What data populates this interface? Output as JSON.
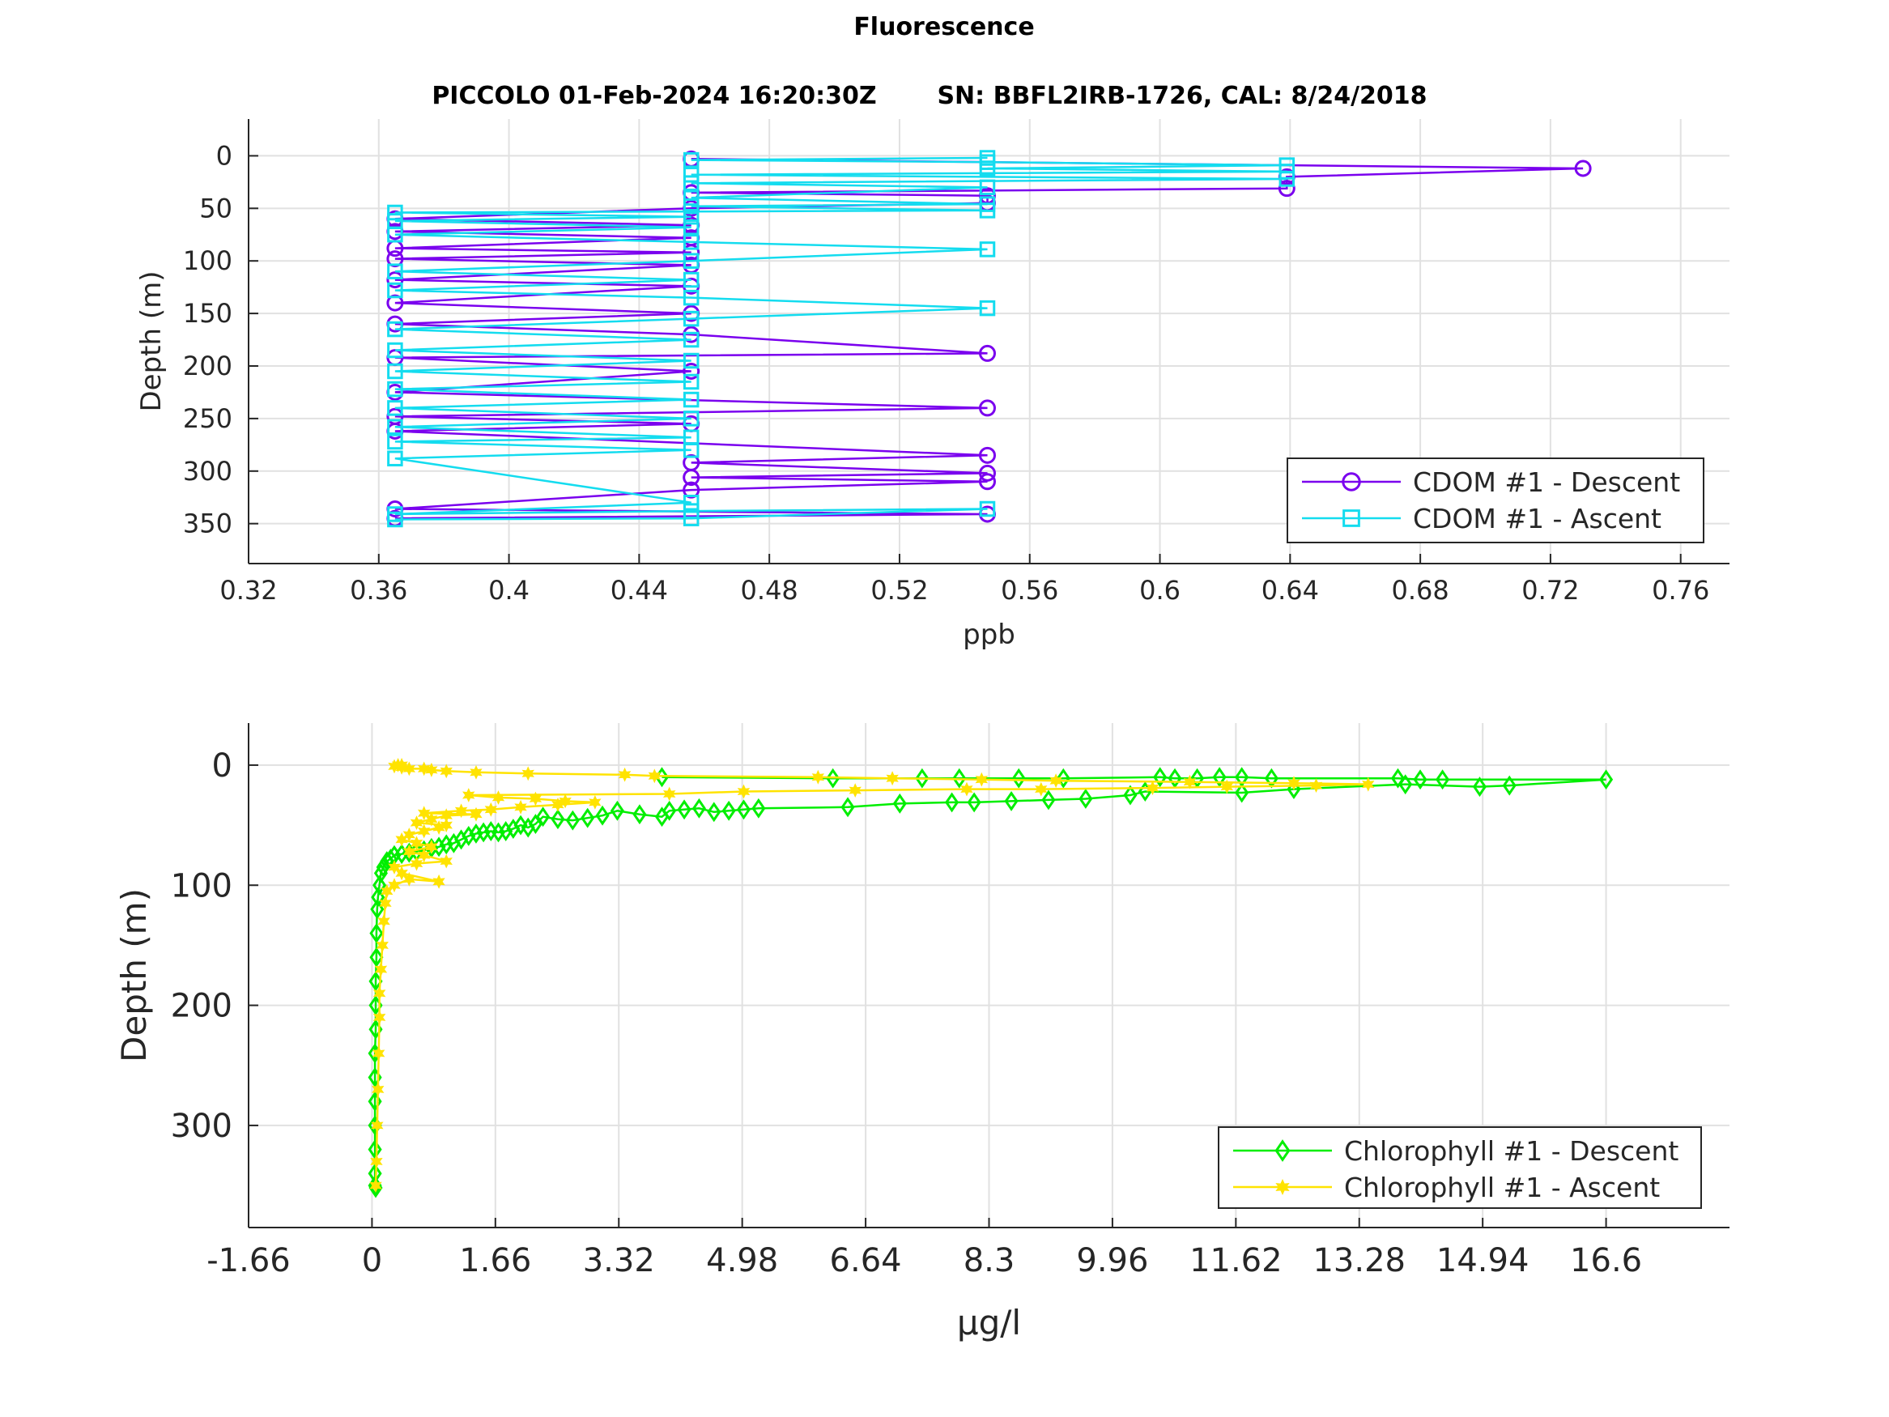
{
  "figure": {
    "title": "Fluorescence",
    "subtitle_left": "PICCOLO 01-Feb-2024 16:20:30Z",
    "subtitle_right": "SN: BBFL2IRB-1726, CAL: 8/24/2018"
  },
  "colors": {
    "cdom_descent": "#7a00ee",
    "cdom_ascent": "#14dcef",
    "chl_descent": "#00ee00",
    "chl_ascent": "#ffe300",
    "axis": "#262626",
    "grid": "#e1e1e1"
  },
  "chart_data": [
    {
      "type": "line",
      "xlabel": "ppb",
      "ylabel": "Depth (m)",
      "xlim": [
        0.32,
        0.775
      ],
      "ylim": [
        -35,
        388
      ],
      "y_reversed": true,
      "grid": true,
      "legend_position": "bottom-right",
      "xticks": [
        "0.32",
        "0.36",
        "0.4",
        "0.44",
        "0.48",
        "0.52",
        "0.56",
        "0.6",
        "0.64",
        "0.68",
        "0.72",
        "0.76"
      ],
      "yticks": [
        "0",
        "50",
        "100",
        "150",
        "200",
        "250",
        "300",
        "350"
      ],
      "series": [
        {
          "name": "CDOM #1 - Descent",
          "marker": "circle",
          "points": [
            [
              0.456,
              3
            ],
            [
              0.73,
              12
            ],
            [
              0.639,
              20
            ],
            [
              0.639,
              31
            ],
            [
              0.456,
              35
            ],
            [
              0.547,
              38
            ],
            [
              0.547,
              45
            ],
            [
              0.456,
              50
            ],
            [
              0.365,
              60
            ],
            [
              0.456,
              66
            ],
            [
              0.365,
              72
            ],
            [
              0.456,
              78
            ],
            [
              0.365,
              88
            ],
            [
              0.456,
              92
            ],
            [
              0.365,
              98
            ],
            [
              0.456,
              104
            ],
            [
              0.365,
              118
            ],
            [
              0.456,
              124
            ],
            [
              0.365,
              140
            ],
            [
              0.456,
              150
            ],
            [
              0.365,
              160
            ],
            [
              0.456,
              170
            ],
            [
              0.547,
              188
            ],
            [
              0.365,
              192
            ],
            [
              0.456,
              205
            ],
            [
              0.365,
              225
            ],
            [
              0.547,
              240
            ],
            [
              0.365,
              248
            ],
            [
              0.456,
              255
            ],
            [
              0.365,
              262
            ],
            [
              0.547,
              285
            ],
            [
              0.456,
              292
            ],
            [
              0.547,
              302
            ],
            [
              0.456,
              306
            ],
            [
              0.547,
              310
            ],
            [
              0.456,
              318
            ],
            [
              0.365,
              336
            ],
            [
              0.547,
              341
            ],
            [
              0.365,
              345
            ]
          ]
        },
        {
          "name": "CDOM #1 - Ascent",
          "marker": "square",
          "points": [
            [
              0.365,
              346
            ],
            [
              0.456,
              345
            ],
            [
              0.547,
              336
            ],
            [
              0.456,
              338
            ],
            [
              0.365,
              341
            ],
            [
              0.456,
              330
            ],
            [
              0.365,
              288
            ],
            [
              0.456,
              280
            ],
            [
              0.365,
              272
            ],
            [
              0.456,
              268
            ],
            [
              0.365,
              258
            ],
            [
              0.456,
              250
            ],
            [
              0.365,
              240
            ],
            [
              0.456,
              232
            ],
            [
              0.365,
              222
            ],
            [
              0.456,
              215
            ],
            [
              0.365,
              205
            ],
            [
              0.456,
              195
            ],
            [
              0.365,
              185
            ],
            [
              0.456,
              175
            ],
            [
              0.365,
              165
            ],
            [
              0.456,
              155
            ],
            [
              0.547,
              145
            ],
            [
              0.456,
              135
            ],
            [
              0.365,
              128
            ],
            [
              0.456,
              118
            ],
            [
              0.365,
              110
            ],
            [
              0.456,
              100
            ],
            [
              0.547,
              89
            ],
            [
              0.456,
              82
            ],
            [
              0.365,
              75
            ],
            [
              0.456,
              68
            ],
            [
              0.365,
              62
            ],
            [
              0.456,
              58
            ],
            [
              0.365,
              54
            ],
            [
              0.547,
              52
            ],
            [
              0.456,
              48
            ],
            [
              0.547,
              46
            ],
            [
              0.456,
              40
            ],
            [
              0.547,
              30
            ],
            [
              0.456,
              26
            ],
            [
              0.639,
              22
            ],
            [
              0.456,
              18
            ],
            [
              0.639,
              15
            ],
            [
              0.547,
              12
            ],
            [
              0.639,
              9
            ],
            [
              0.547,
              6
            ],
            [
              0.456,
              4
            ],
            [
              0.547,
              2
            ]
          ]
        }
      ]
    },
    {
      "type": "line",
      "xlabel": "μg/l",
      "ylabel": "Depth (m)",
      "xlim": [
        -1.66,
        18.26
      ],
      "ylim": [
        -35,
        385
      ],
      "y_reversed": true,
      "grid": true,
      "legend_position": "bottom-right",
      "xticks": [
        "-1.66",
        "0",
        "1.66",
        "3.32",
        "4.98",
        "6.64",
        "8.3",
        "9.96",
        "11.62",
        "13.28",
        "14.94",
        "16.6"
      ],
      "yticks": [
        "0",
        "100",
        "200",
        "300"
      ],
      "series": [
        {
          "name": "Chlorophyll #1 - Descent",
          "marker": "diamond",
          "points": [
            [
              3.9,
              10
            ],
            [
              6.2,
              11
            ],
            [
              7.4,
              11
            ],
            [
              7.9,
              11
            ],
            [
              8.7,
              11
            ],
            [
              9.3,
              11
            ],
            [
              10.6,
              10
            ],
            [
              10.8,
              11
            ],
            [
              11.1,
              11
            ],
            [
              11.4,
              10
            ],
            [
              11.7,
              10
            ],
            [
              12.1,
              11
            ],
            [
              13.8,
              11
            ],
            [
              14.1,
              12
            ],
            [
              14.4,
              12
            ],
            [
              16.6,
              12
            ],
            [
              15.3,
              17
            ],
            [
              14.9,
              18
            ],
            [
              13.9,
              16
            ],
            [
              12.4,
              20
            ],
            [
              11.7,
              23
            ],
            [
              10.4,
              22
            ],
            [
              10.2,
              25
            ],
            [
              9.6,
              28
            ],
            [
              9.1,
              29
            ],
            [
              8.6,
              30
            ],
            [
              8.1,
              31
            ],
            [
              7.8,
              31
            ],
            [
              7.1,
              32
            ],
            [
              6.4,
              35
            ],
            [
              5.2,
              36
            ],
            [
              5.0,
              37
            ],
            [
              4.8,
              38
            ],
            [
              4.6,
              39
            ],
            [
              4.4,
              36
            ],
            [
              4.2,
              37
            ],
            [
              4.0,
              38
            ],
            [
              3.9,
              43
            ],
            [
              3.6,
              41
            ],
            [
              3.3,
              38
            ],
            [
              3.1,
              42
            ],
            [
              2.9,
              44
            ],
            [
              2.7,
              46
            ],
            [
              2.5,
              45
            ],
            [
              2.3,
              43
            ],
            [
              2.2,
              49
            ],
            [
              2.1,
              52
            ],
            [
              2.0,
              50
            ],
            [
              1.9,
              53
            ],
            [
              1.8,
              55
            ],
            [
              1.7,
              56
            ],
            [
              1.6,
              55
            ],
            [
              1.5,
              56
            ],
            [
              1.4,
              57
            ],
            [
              1.3,
              59
            ],
            [
              1.2,
              62
            ],
            [
              1.1,
              65
            ],
            [
              1.0,
              66
            ],
            [
              0.9,
              68
            ],
            [
              0.8,
              69
            ],
            [
              0.7,
              71
            ],
            [
              0.6,
              72
            ],
            [
              0.5,
              73
            ],
            [
              0.4,
              74
            ],
            [
              0.3,
              75
            ],
            [
              0.25,
              78
            ],
            [
              0.2,
              80
            ],
            [
              0.15,
              85
            ],
            [
              0.12,
              90
            ],
            [
              0.1,
              100
            ],
            [
              0.08,
              110
            ],
            [
              0.07,
              120
            ],
            [
              0.06,
              140
            ],
            [
              0.06,
              160
            ],
            [
              0.05,
              180
            ],
            [
              0.05,
              200
            ],
            [
              0.05,
              220
            ],
            [
              0.04,
              240
            ],
            [
              0.04,
              260
            ],
            [
              0.04,
              280
            ],
            [
              0.04,
              300
            ],
            [
              0.04,
              320
            ],
            [
              0.04,
              340
            ],
            [
              0.04,
              350
            ],
            [
              0.05,
              352
            ]
          ]
        },
        {
          "name": "Chlorophyll #1 - Ascent",
          "marker": "star",
          "points": [
            [
              0.05,
              350
            ],
            [
              0.06,
              330
            ],
            [
              0.07,
              300
            ],
            [
              0.08,
              270
            ],
            [
              0.09,
              240
            ],
            [
              0.1,
              210
            ],
            [
              0.1,
              190
            ],
            [
              0.12,
              170
            ],
            [
              0.14,
              150
            ],
            [
              0.16,
              130
            ],
            [
              0.18,
              115
            ],
            [
              0.2,
              105
            ],
            [
              0.3,
              100
            ],
            [
              0.5,
              95
            ],
            [
              0.9,
              97
            ],
            [
              0.4,
              90
            ],
            [
              0.3,
              85
            ],
            [
              0.6,
              82
            ],
            [
              1.0,
              80
            ],
            [
              0.7,
              75
            ],
            [
              0.5,
              72
            ],
            [
              0.8,
              68
            ],
            [
              0.6,
              65
            ],
            [
              0.4,
              62
            ],
            [
              0.5,
              58
            ],
            [
              0.7,
              55
            ],
            [
              0.9,
              52
            ],
            [
              1.0,
              50
            ],
            [
              0.6,
              48
            ],
            [
              0.8,
              45
            ],
            [
              1.0,
              42
            ],
            [
              1.4,
              41
            ],
            [
              0.7,
              40
            ],
            [
              1.2,
              38
            ],
            [
              1.6,
              37
            ],
            [
              2.0,
              35
            ],
            [
              2.5,
              33
            ],
            [
              3.0,
              31
            ],
            [
              2.6,
              30
            ],
            [
              2.2,
              28
            ],
            [
              1.7,
              27
            ],
            [
              1.3,
              25
            ],
            [
              4.0,
              24
            ],
            [
              5.0,
              22
            ],
            [
              6.5,
              21
            ],
            [
              8.0,
              20
            ],
            [
              9.0,
              20
            ],
            [
              10.5,
              19
            ],
            [
              11.5,
              18
            ],
            [
              12.7,
              17
            ],
            [
              13.4,
              16
            ],
            [
              12.4,
              15
            ],
            [
              11.0,
              14
            ],
            [
              9.2,
              13
            ],
            [
              8.2,
              12
            ],
            [
              7.0,
              11
            ],
            [
              6.0,
              10
            ],
            [
              3.8,
              9
            ],
            [
              3.4,
              8
            ],
            [
              2.1,
              7
            ],
            [
              1.4,
              6
            ],
            [
              1.0,
              5
            ],
            [
              0.8,
              4
            ],
            [
              0.7,
              3
            ],
            [
              0.5,
              3
            ],
            [
              0.4,
              2
            ],
            [
              0.3,
              1
            ],
            [
              0.35,
              0
            ],
            [
              0.4,
              0
            ]
          ]
        }
      ]
    }
  ]
}
